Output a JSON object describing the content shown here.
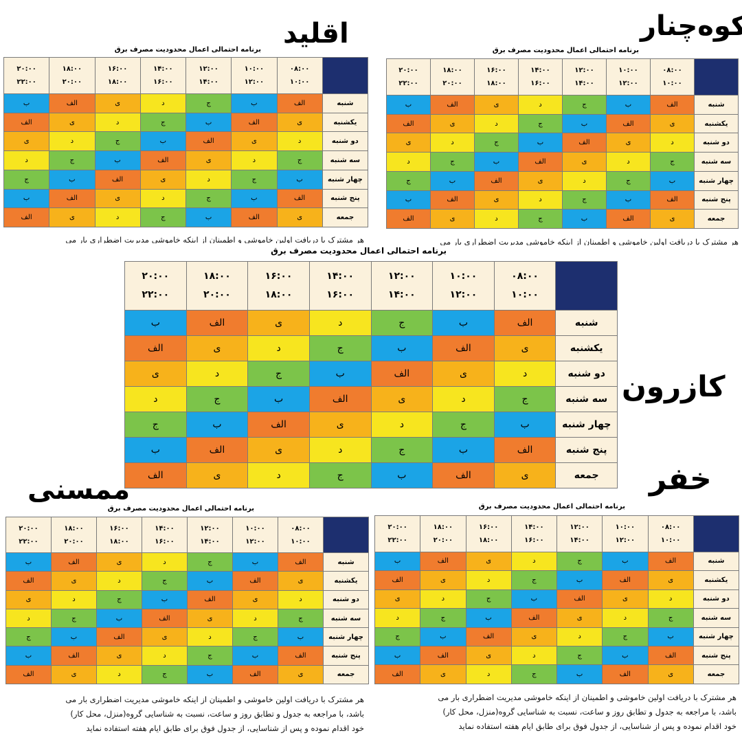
{
  "schedule_title": "برنامه احتمالی اعمال محدودیت مصرف برق",
  "time_slots": [
    {
      "start": "۰۸:۰۰",
      "end": "۱۰:۰۰"
    },
    {
      "start": "۱۰:۰۰",
      "end": "۱۲:۰۰"
    },
    {
      "start": "۱۲:۰۰",
      "end": "۱۴:۰۰"
    },
    {
      "start": "۱۴:۰۰",
      "end": "۱۶:۰۰"
    },
    {
      "start": "۱۶:۰۰",
      "end": "۱۸:۰۰"
    },
    {
      "start": "۱۸:۰۰",
      "end": "۲۰:۰۰"
    },
    {
      "start": "۲۰:۰۰",
      "end": "۲۲:۰۰"
    }
  ],
  "days": [
    "شنبه",
    "یکشنبه",
    "دو شنبه",
    "سه شنبه",
    "چهار شنبه",
    "پنج شنبه",
    "جمعه"
  ],
  "groups": {
    "alef": {
      "label": "الف",
      "color": "#f07c2e"
    },
    "be": {
      "label": "ب",
      "color": "#1ba4e6"
    },
    "jim": {
      "label": "ج",
      "color": "#7cc44a"
    },
    "dal": {
      "label": "د",
      "color": "#f7e51f"
    },
    "ye": {
      "label": "ی",
      "color": "#f7b21b"
    }
  },
  "grid": [
    [
      "alef",
      "be",
      "jim",
      "dal",
      "ye",
      "alef",
      "be"
    ],
    [
      "ye",
      "alef",
      "be",
      "jim",
      "dal",
      "ye",
      "alef"
    ],
    [
      "dal",
      "ye",
      "alef",
      "be",
      "jim",
      "dal",
      "ye"
    ],
    [
      "jim",
      "dal",
      "ye",
      "alef",
      "be",
      "jim",
      "dal"
    ],
    [
      "be",
      "jim",
      "dal",
      "ye",
      "alef",
      "be",
      "jim"
    ],
    [
      "alef",
      "be",
      "jim",
      "dal",
      "ye",
      "alef",
      "be"
    ],
    [
      "ye",
      "alef",
      "be",
      "jim",
      "dal",
      "ye",
      "alef"
    ]
  ],
  "cities": {
    "eqlid": "اقلید",
    "kuhchenar": "کوه‌چنار",
    "kazerun": "کازرون",
    "mamasani": "ممسنی",
    "khafr": "خفر"
  },
  "note_lines": [
    "هر مشترک با دریافت اولین خاموشی و اطمینان از اینکه خاموشی مدیریت اضطراری بار می",
    "باشد، با مراجعه به جدول و تطابق روز و ساعت، نسبت به شناسایی گروه(منزل، محل کار)",
    "خود اقدام نموده و پس از شناسایی، از جدول فوق برای طابق ایام هفته استفاده نماید"
  ]
}
